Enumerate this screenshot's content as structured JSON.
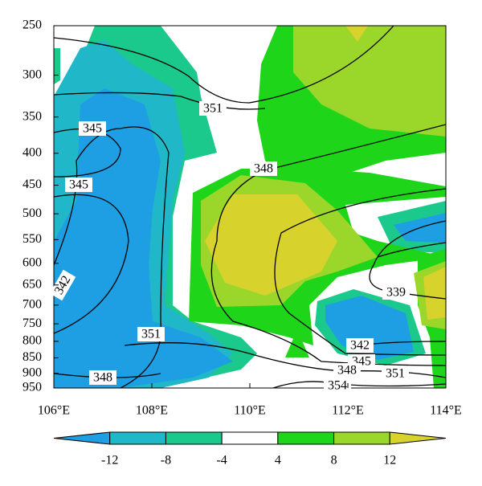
{
  "chart_data": {
    "type": "contour",
    "x_label_suffix_note": null,
    "xlim": [
      106,
      114
    ],
    "xticks": [
      {
        "value": 106,
        "label": "106°E"
      },
      {
        "value": 108,
        "label": "108°E"
      },
      {
        "value": 110,
        "label": "110°E"
      },
      {
        "value": 112,
        "label": "112°E"
      },
      {
        "value": 114,
        "label": "114°E"
      }
    ],
    "ylim": [
      250,
      950
    ],
    "y_log": true,
    "y_inverted": true,
    "yticks": [
      250,
      300,
      350,
      400,
      450,
      500,
      550,
      600,
      650,
      700,
      750,
      800,
      850,
      900,
      950
    ],
    "colorbar": {
      "levels": [
        -12,
        -8,
        -4,
        4,
        8,
        12
      ],
      "colors": [
        "#1e9fe3",
        "#20b8c8",
        "#1cc98c",
        "#ffffff",
        "#1ed51a",
        "#9bd62b",
        "#d8d22c"
      ]
    },
    "contour_labels": [
      351,
      345,
      345,
      342,
      348,
      351,
      348,
      339,
      342,
      345,
      348,
      351,
      354
    ]
  }
}
